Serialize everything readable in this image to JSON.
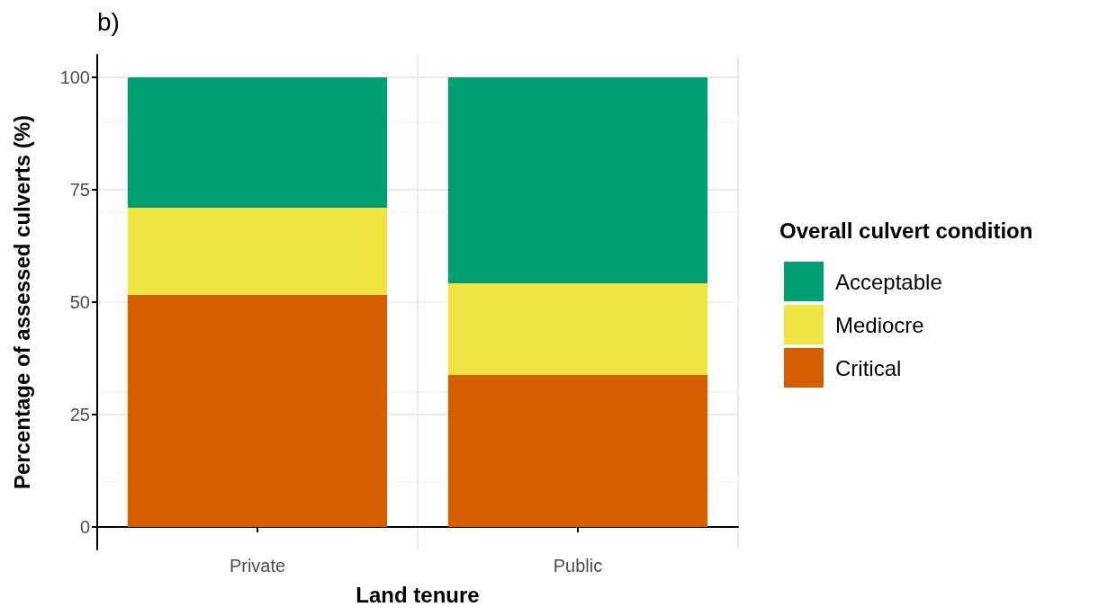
{
  "chart_data": {
    "type": "bar",
    "title": "b)",
    "xlabel": "Land tenure",
    "ylabel": "Percentage of assessed culverts (%)",
    "legend_title": "Overall culvert condition",
    "categories": [
      "Private",
      "Public"
    ],
    "stacked": true,
    "series": [
      {
        "name": "Critical",
        "color": "#d55e00",
        "values": [
          51.6,
          33.8
        ]
      },
      {
        "name": "Mediocre",
        "color": "#f0e442",
        "values": [
          19.4,
          20.4
        ]
      },
      {
        "name": "Acceptable",
        "color": "#009e73",
        "values": [
          29.0,
          45.8
        ]
      }
    ],
    "ylim": [
      -5,
      105
    ],
    "yticks": [
      0,
      25,
      50,
      75,
      100
    ],
    "grid": true,
    "legend": "right"
  }
}
